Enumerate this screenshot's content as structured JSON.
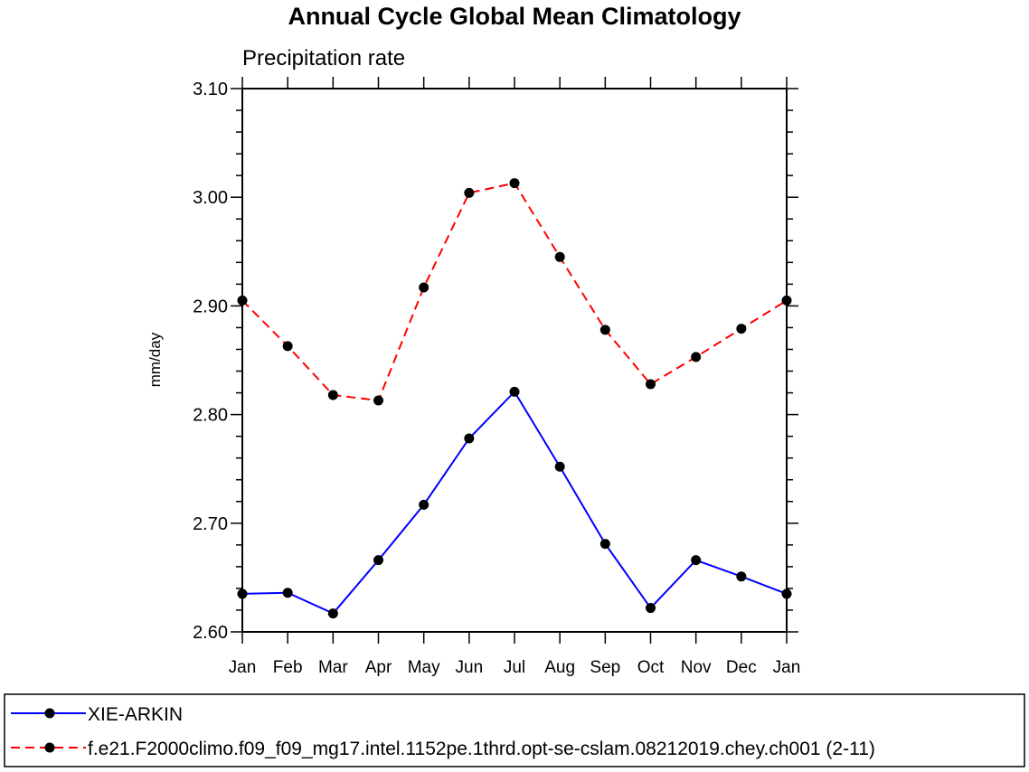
{
  "chart_data": {
    "type": "line",
    "title": "Annual Cycle Global Mean Climatology",
    "subtitle": "Precipitation rate",
    "xlabel": "",
    "ylabel": "mm/day",
    "categories": [
      "Jan",
      "Feb",
      "Mar",
      "Apr",
      "May",
      "Jun",
      "Jul",
      "Aug",
      "Sep",
      "Oct",
      "Nov",
      "Dec",
      "Jan"
    ],
    "ylim": [
      2.6,
      3.1
    ],
    "yticks": [
      "2.60",
      "2.70",
      "2.80",
      "2.90",
      "3.00",
      "3.10"
    ],
    "grid": false,
    "legend_position": "bottom",
    "series": [
      {
        "name": "XIE-ARKIN",
        "color": "#0000ff",
        "line_style": "solid",
        "marker": "filled-circle",
        "values": [
          2.635,
          2.636,
          2.617,
          2.666,
          2.717,
          2.778,
          2.821,
          2.752,
          2.681,
          2.622,
          2.666,
          2.651,
          2.635
        ]
      },
      {
        "name": "f.e21.F2000climo.f09_f09_mg17.intel.1152pe.1thrd.opt-se-cslam.08212019.chey.ch001 (2-11)",
        "color": "#ff0000",
        "line_style": "dashed",
        "marker": "filled-circle",
        "values": [
          2.905,
          2.863,
          2.818,
          2.813,
          2.917,
          3.004,
          3.013,
          2.945,
          2.878,
          2.828,
          2.853,
          2.879,
          2.905
        ]
      }
    ]
  }
}
